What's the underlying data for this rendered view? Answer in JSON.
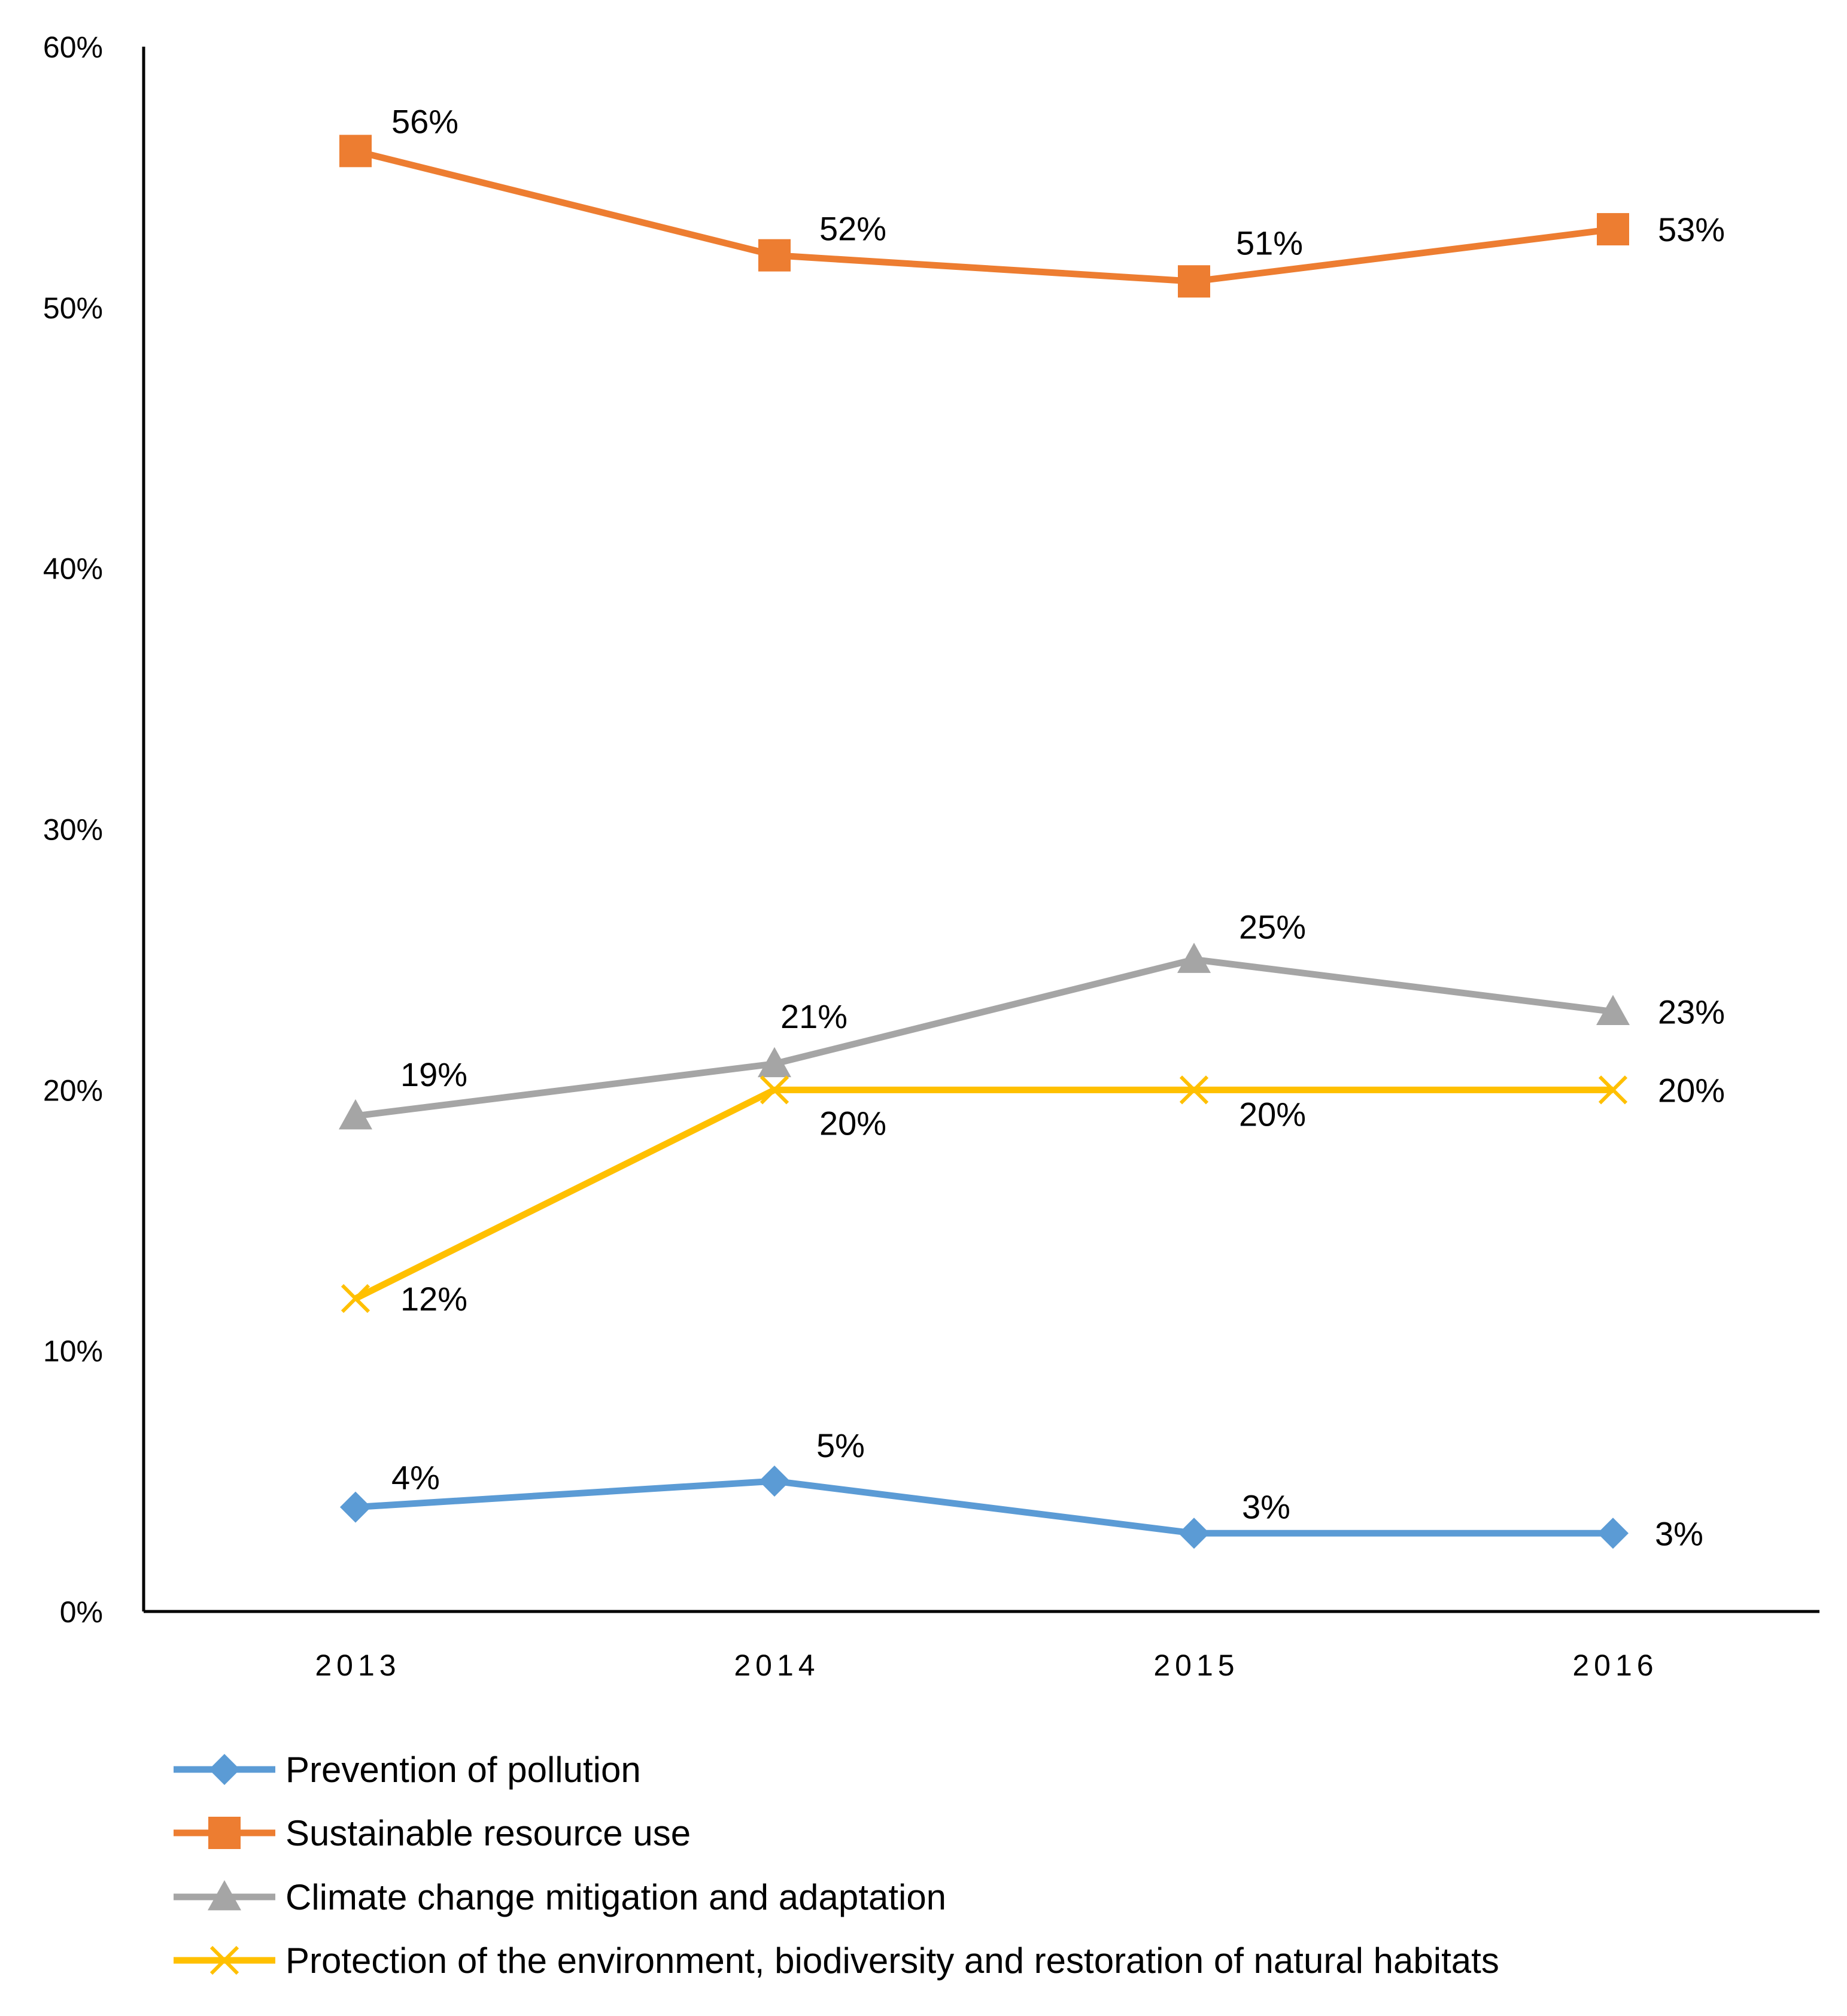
{
  "chart_data": {
    "type": "line",
    "title": "",
    "xlabel": "",
    "ylabel": "",
    "categories": [
      "2013",
      "2014",
      "2015",
      "2016"
    ],
    "ylim": [
      0,
      60
    ],
    "ytick_labels": [
      "0%",
      "10%",
      "20%",
      "30%",
      "40%",
      "50%",
      "60%"
    ],
    "grid": false,
    "legend_position": "bottom",
    "series": [
      {
        "name": "Prevention of pollution",
        "values": [
          4,
          5,
          3,
          3
        ],
        "labels": [
          "4%",
          "5%",
          "3%",
          "3%"
        ],
        "color": "#5B9BD5",
        "marker": "diamond"
      },
      {
        "name": "Sustainable resource use",
        "values": [
          56,
          52,
          51,
          53
        ],
        "labels": [
          "56%",
          "52%",
          "51%",
          "53%"
        ],
        "color": "#ED7D31",
        "marker": "square"
      },
      {
        "name": "Climate change mitigation and adaptation",
        "values": [
          19,
          21,
          25,
          23
        ],
        "labels": [
          "19%",
          "21%",
          "25%",
          "23%"
        ],
        "color": "#A5A5A5",
        "marker": "triangle"
      },
      {
        "name": "Protection of the environment, biodiversity and restoration of natural habitats",
        "values": [
          12,
          20,
          20,
          20
        ],
        "labels": [
          "12%",
          "20%",
          "20%",
          "20%"
        ],
        "color": "#FFC000",
        "marker": "x"
      }
    ]
  }
}
